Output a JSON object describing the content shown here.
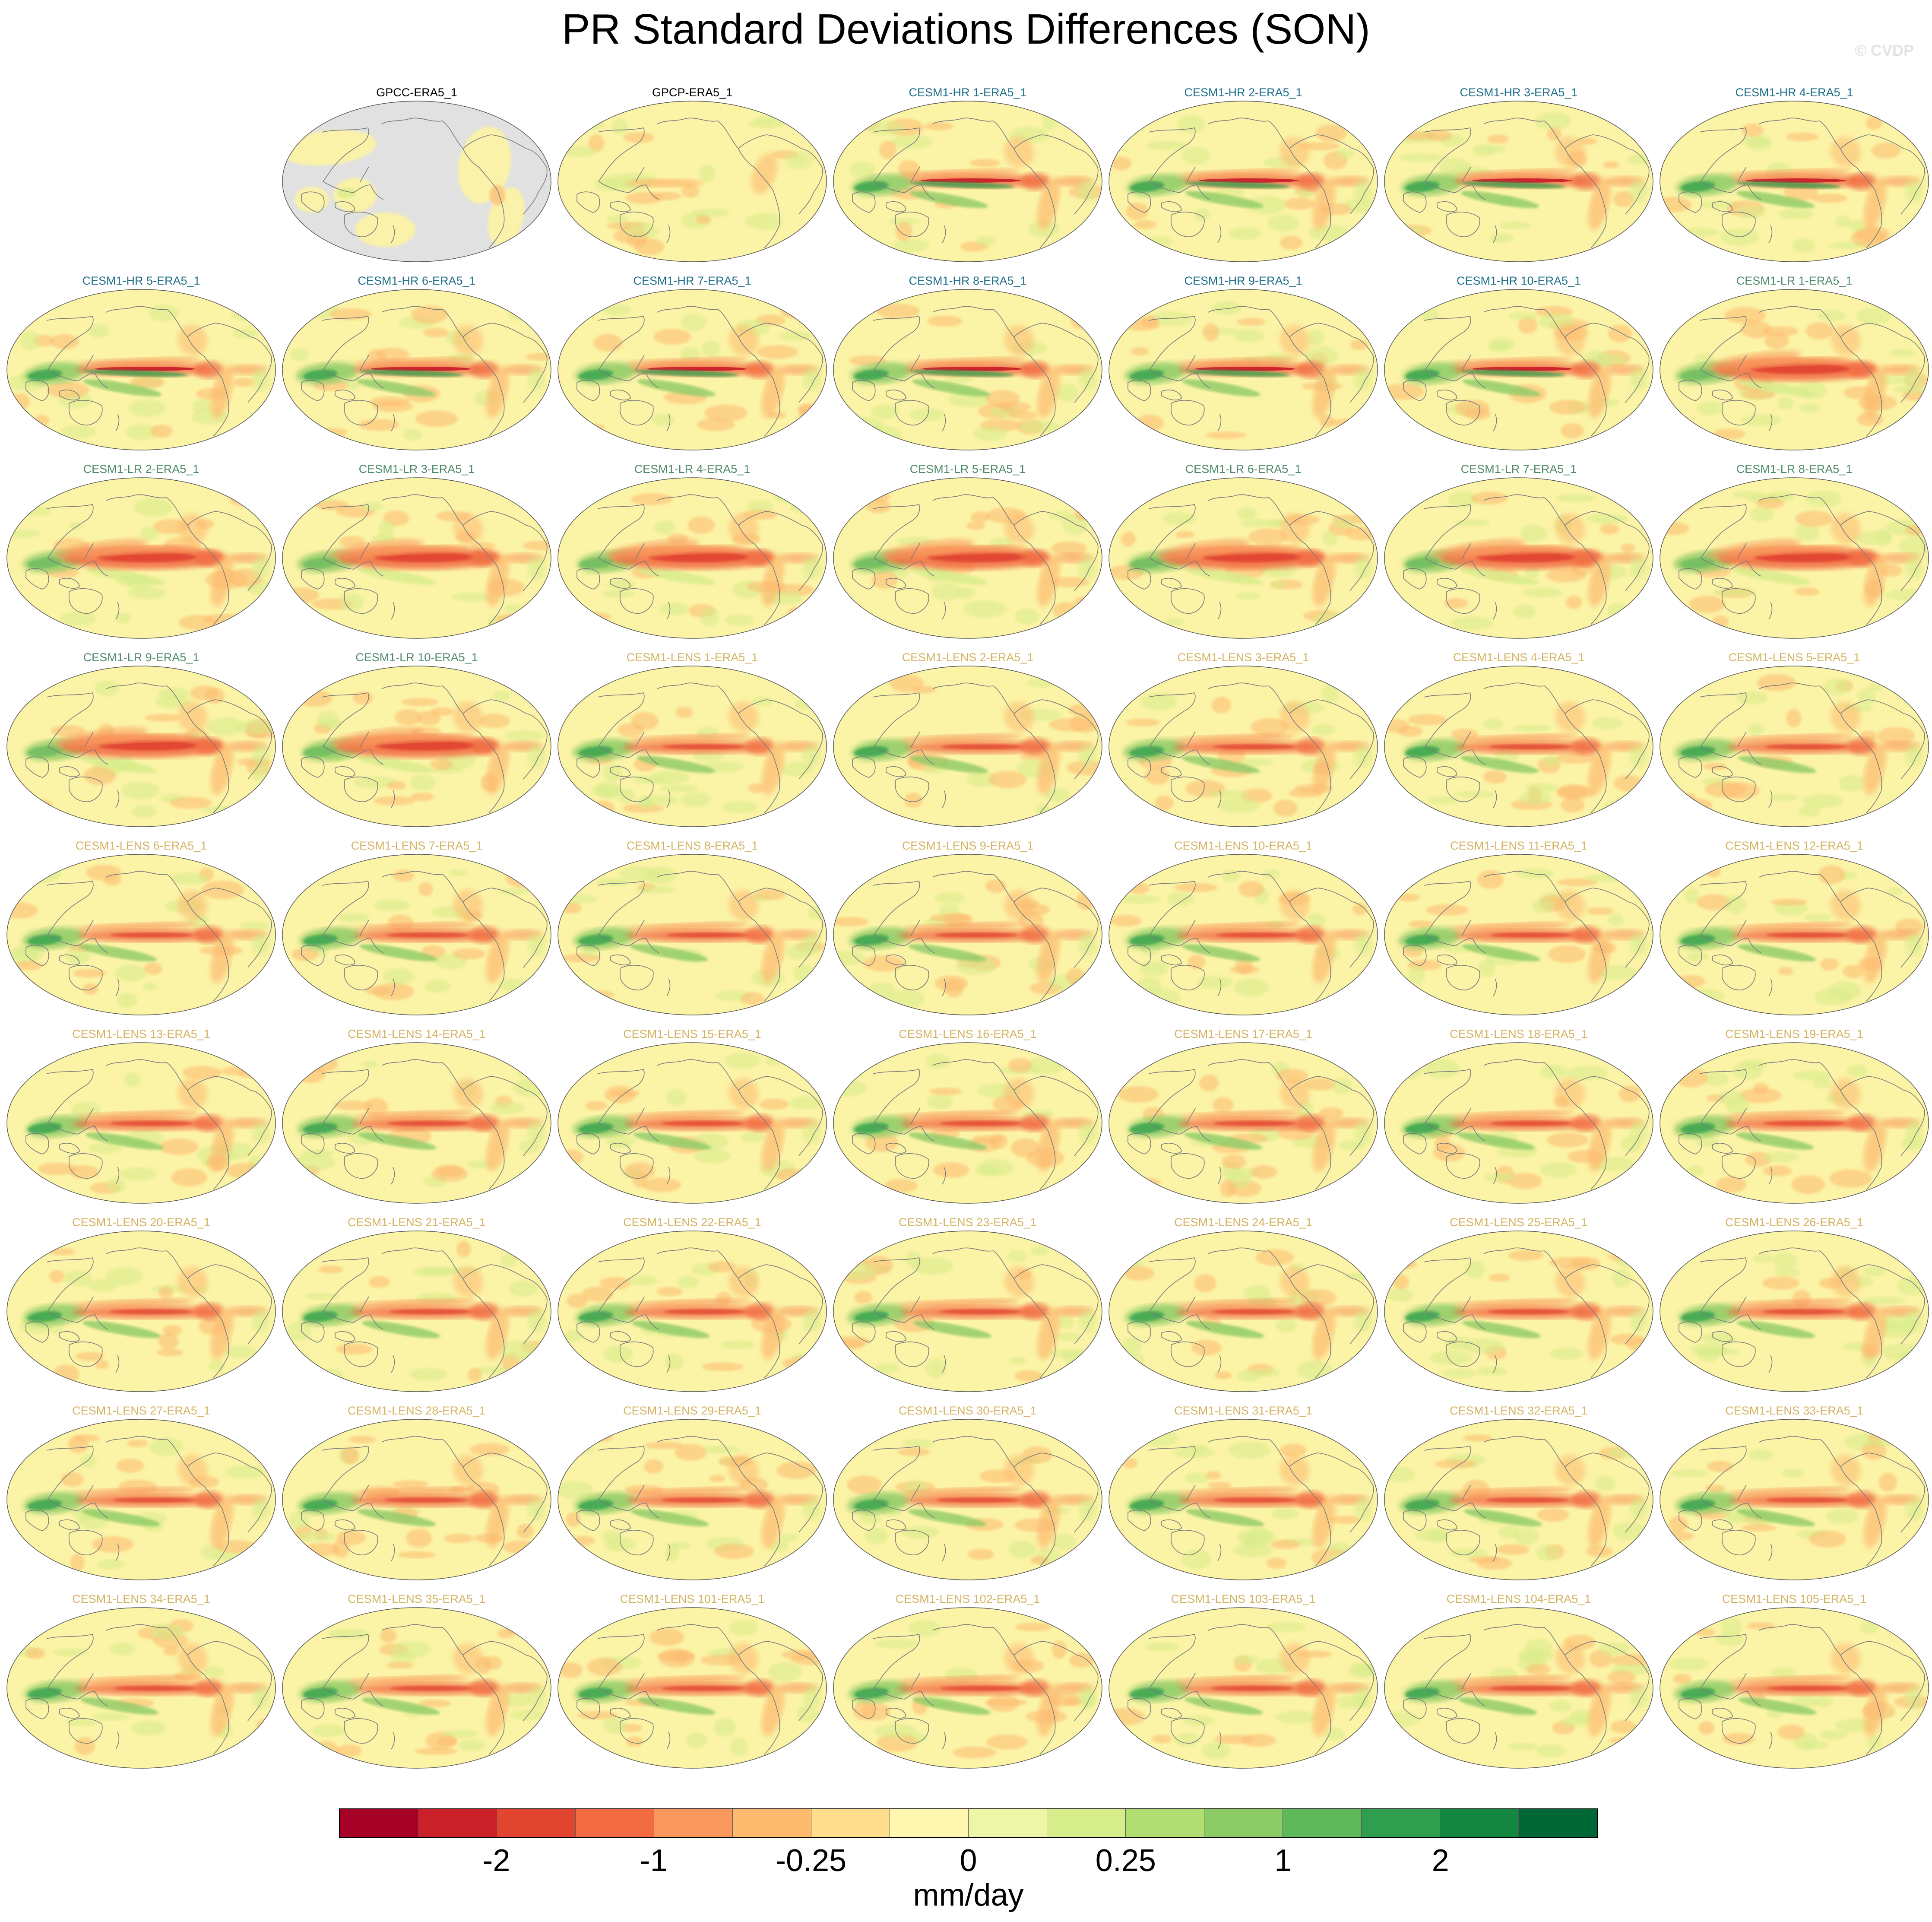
{
  "title": "PR Standard Deviations Differences (SON)",
  "watermark": "© CVDP",
  "colors": {
    "obs_label": "#000000",
    "hr_label": "#1f6f8b",
    "lr_label": "#4e8a6a",
    "lens_label": "#d4b360",
    "ocean_base": "#fbf3a6",
    "land_missing": "#e1e1e1",
    "coastline": "#7a7a7a"
  },
  "panels": [
    {
      "label": "GPCC-ERA5_1",
      "group": "obs",
      "kind": "land-only"
    },
    {
      "label": "GPCP-ERA5_1",
      "group": "obs",
      "kind": "obs"
    },
    {
      "label": "CESM1-HR 1-ERA5_1",
      "group": "hr",
      "kind": "hr"
    },
    {
      "label": "CESM1-HR 2-ERA5_1",
      "group": "hr",
      "kind": "hr"
    },
    {
      "label": "CESM1-HR 3-ERA5_1",
      "group": "hr",
      "kind": "hr"
    },
    {
      "label": "CESM1-HR 4-ERA5_1",
      "group": "hr",
      "kind": "hr"
    },
    {
      "label": "CESM1-HR 5-ERA5_1",
      "group": "hr",
      "kind": "hr"
    },
    {
      "label": "CESM1-HR 6-ERA5_1",
      "group": "hr",
      "kind": "hr"
    },
    {
      "label": "CESM1-HR 7-ERA5_1",
      "group": "hr",
      "kind": "hr"
    },
    {
      "label": "CESM1-HR 8-ERA5_1",
      "group": "hr",
      "kind": "hr"
    },
    {
      "label": "CESM1-HR 9-ERA5_1",
      "group": "hr",
      "kind": "hr"
    },
    {
      "label": "CESM1-HR 10-ERA5_1",
      "group": "hr",
      "kind": "hr"
    },
    {
      "label": "CESM1-LR 1-ERA5_1",
      "group": "lr",
      "kind": "lr"
    },
    {
      "label": "CESM1-LR 2-ERA5_1",
      "group": "lr",
      "kind": "lr"
    },
    {
      "label": "CESM1-LR 3-ERA5_1",
      "group": "lr",
      "kind": "lr"
    },
    {
      "label": "CESM1-LR 4-ERA5_1",
      "group": "lr",
      "kind": "lr"
    },
    {
      "label": "CESM1-LR 5-ERA5_1",
      "group": "lr",
      "kind": "lr"
    },
    {
      "label": "CESM1-LR 6-ERA5_1",
      "group": "lr",
      "kind": "lr"
    },
    {
      "label": "CESM1-LR 7-ERA5_1",
      "group": "lr",
      "kind": "lr"
    },
    {
      "label": "CESM1-LR 8-ERA5_1",
      "group": "lr",
      "kind": "lr"
    },
    {
      "label": "CESM1-LR 9-ERA5_1",
      "group": "lr",
      "kind": "lr"
    },
    {
      "label": "CESM1-LR 10-ERA5_1",
      "group": "lr",
      "kind": "lr"
    },
    {
      "label": "CESM1-LENS 1-ERA5_1",
      "group": "lens",
      "kind": "lens"
    },
    {
      "label": "CESM1-LENS 2-ERA5_1",
      "group": "lens",
      "kind": "lens"
    },
    {
      "label": "CESM1-LENS 3-ERA5_1",
      "group": "lens",
      "kind": "lens"
    },
    {
      "label": "CESM1-LENS 4-ERA5_1",
      "group": "lens",
      "kind": "lens"
    },
    {
      "label": "CESM1-LENS 5-ERA5_1",
      "group": "lens",
      "kind": "lens"
    },
    {
      "label": "CESM1-LENS 6-ERA5_1",
      "group": "lens",
      "kind": "lens"
    },
    {
      "label": "CESM1-LENS 7-ERA5_1",
      "group": "lens",
      "kind": "lens"
    },
    {
      "label": "CESM1-LENS 8-ERA5_1",
      "group": "lens",
      "kind": "lens"
    },
    {
      "label": "CESM1-LENS 9-ERA5_1",
      "group": "lens",
      "kind": "lens"
    },
    {
      "label": "CESM1-LENS 10-ERA5_1",
      "group": "lens",
      "kind": "lens"
    },
    {
      "label": "CESM1-LENS 11-ERA5_1",
      "group": "lens",
      "kind": "lens"
    },
    {
      "label": "CESM1-LENS 12-ERA5_1",
      "group": "lens",
      "kind": "lens"
    },
    {
      "label": "CESM1-LENS 13-ERA5_1",
      "group": "lens",
      "kind": "lens"
    },
    {
      "label": "CESM1-LENS 14-ERA5_1",
      "group": "lens",
      "kind": "lens"
    },
    {
      "label": "CESM1-LENS 15-ERA5_1",
      "group": "lens",
      "kind": "lens"
    },
    {
      "label": "CESM1-LENS 16-ERA5_1",
      "group": "lens",
      "kind": "lens"
    },
    {
      "label": "CESM1-LENS 17-ERA5_1",
      "group": "lens",
      "kind": "lens"
    },
    {
      "label": "CESM1-LENS 18-ERA5_1",
      "group": "lens",
      "kind": "lens"
    },
    {
      "label": "CESM1-LENS 19-ERA5_1",
      "group": "lens",
      "kind": "lens"
    },
    {
      "label": "CESM1-LENS 20-ERA5_1",
      "group": "lens",
      "kind": "lens"
    },
    {
      "label": "CESM1-LENS 21-ERA5_1",
      "group": "lens",
      "kind": "lens"
    },
    {
      "label": "CESM1-LENS 22-ERA5_1",
      "group": "lens",
      "kind": "lens"
    },
    {
      "label": "CESM1-LENS 23-ERA5_1",
      "group": "lens",
      "kind": "lens"
    },
    {
      "label": "CESM1-LENS 24-ERA5_1",
      "group": "lens",
      "kind": "lens"
    },
    {
      "label": "CESM1-LENS 25-ERA5_1",
      "group": "lens",
      "kind": "lens"
    },
    {
      "label": "CESM1-LENS 26-ERA5_1",
      "group": "lens",
      "kind": "lens"
    },
    {
      "label": "CESM1-LENS 27-ERA5_1",
      "group": "lens",
      "kind": "lens"
    },
    {
      "label": "CESM1-LENS 28-ERA5_1",
      "group": "lens",
      "kind": "lens"
    },
    {
      "label": "CESM1-LENS 29-ERA5_1",
      "group": "lens",
      "kind": "lens"
    },
    {
      "label": "CESM1-LENS 30-ERA5_1",
      "group": "lens",
      "kind": "lens"
    },
    {
      "label": "CESM1-LENS 31-ERA5_1",
      "group": "lens",
      "kind": "lens"
    },
    {
      "label": "CESM1-LENS 32-ERA5_1",
      "group": "lens",
      "kind": "lens"
    },
    {
      "label": "CESM1-LENS 33-ERA5_1",
      "group": "lens",
      "kind": "lens"
    },
    {
      "label": "CESM1-LENS 34-ERA5_1",
      "group": "lens",
      "kind": "lens"
    },
    {
      "label": "CESM1-LENS 35-ERA5_1",
      "group": "lens",
      "kind": "lens"
    },
    {
      "label": "CESM1-LENS 101-ERA5_1",
      "group": "lens",
      "kind": "lens"
    },
    {
      "label": "CESM1-LENS 102-ERA5_1",
      "group": "lens",
      "kind": "lens"
    },
    {
      "label": "CESM1-LENS 103-ERA5_1",
      "group": "lens",
      "kind": "lens"
    },
    {
      "label": "CESM1-LENS 104-ERA5_1",
      "group": "lens",
      "kind": "lens"
    },
    {
      "label": "CESM1-LENS 105-ERA5_1",
      "group": "lens",
      "kind": "lens"
    }
  ],
  "colorbar": {
    "colors": [
      "#a50026",
      "#c9202a",
      "#e14530",
      "#f26b42",
      "#f9975c",
      "#fdba6f",
      "#fede8d",
      "#fff6b0",
      "#edf5a6",
      "#d7ec8a",
      "#b2dd72",
      "#8dcb66",
      "#60b85c",
      "#2f9e4e",
      "#13873f",
      "#006837"
    ],
    "tick_labels": [
      "-2",
      "-1",
      "-0.25",
      "0",
      "0.25",
      "1",
      "2"
    ],
    "tick_boundaries": [
      2,
      4,
      6,
      8,
      10,
      12,
      14
    ],
    "units": "mm/day"
  }
}
